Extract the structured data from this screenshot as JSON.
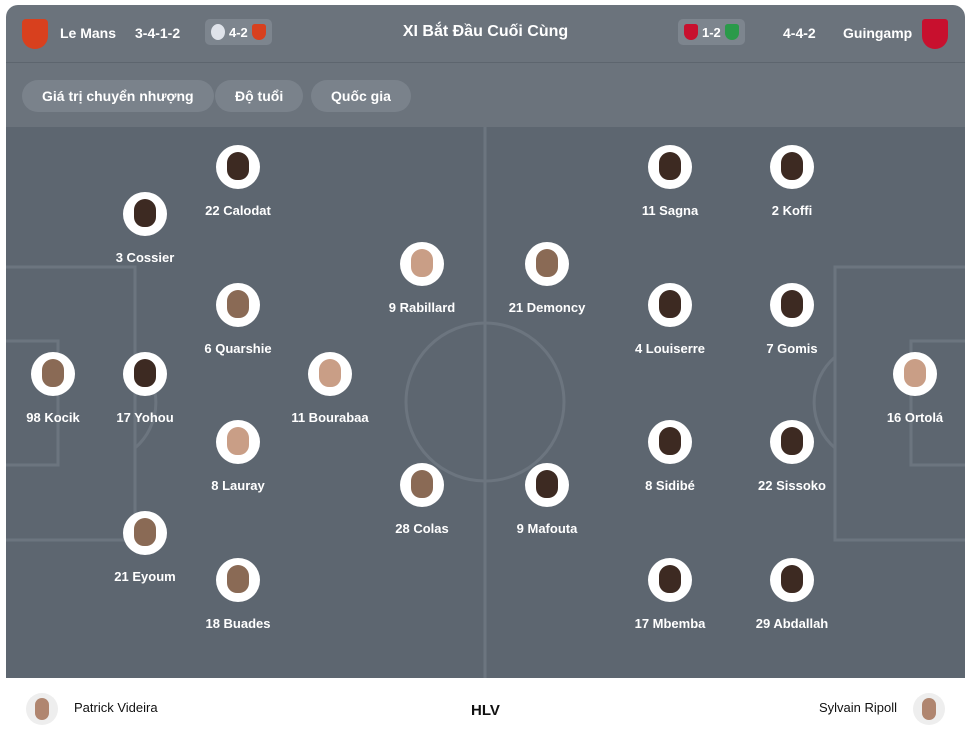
{
  "header": {
    "title": "XI Bắt Đầu Cuối Cùng",
    "home": {
      "name": "Le Mans",
      "formation": "3-4-1-2",
      "last_score": "4-2",
      "color": "#d8401e"
    },
    "away": {
      "name": "Guingamp",
      "formation": "4-4-2",
      "last_score": "1-2",
      "color": "#c8102e"
    }
  },
  "filters": [
    "Giá trị chuyển nhượng",
    "Độ tuổi",
    "Quốc gia"
  ],
  "home_players": [
    {
      "label": "22 Calodat"
    },
    {
      "label": "3 Cossier"
    },
    {
      "label": "6 Quarshie"
    },
    {
      "label": "98 Kocik"
    },
    {
      "label": "17 Yohou"
    },
    {
      "label": "11 Bourabaa"
    },
    {
      "label": "8 Lauray"
    },
    {
      "label": "21 Eyoum"
    },
    {
      "label": "18 Buades"
    },
    {
      "label": "9 Rabillard"
    },
    {
      "label": "28 Colas"
    }
  ],
  "away_players": [
    {
      "label": "21 Demoncy"
    },
    {
      "label": "9 Mafouta"
    },
    {
      "label": "11 Sagna"
    },
    {
      "label": "2 Koffi"
    },
    {
      "label": "4 Louiserre"
    },
    {
      "label": "7 Gomis"
    },
    {
      "label": "16 Ortolá"
    },
    {
      "label": "8 Sidibé"
    },
    {
      "label": "22 Sissoko"
    },
    {
      "label": "17 Mbemba"
    },
    {
      "label": "29 Abdallah"
    }
  ],
  "coaches": {
    "label": "HLV",
    "home": "Patrick Videira",
    "away": "Sylvain Ripoll"
  }
}
